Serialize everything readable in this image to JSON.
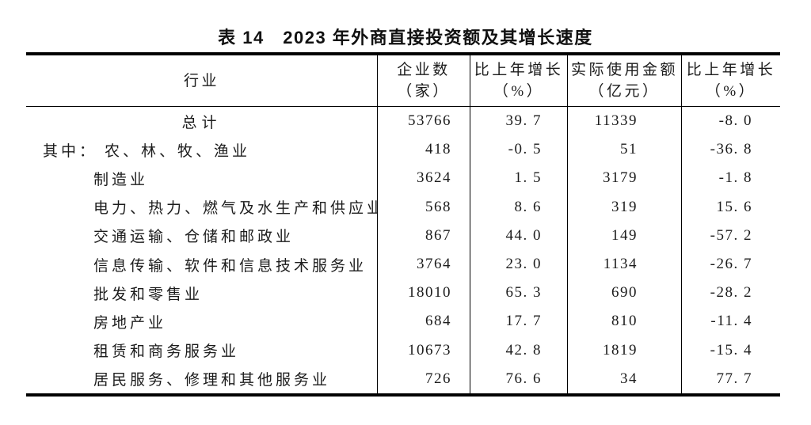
{
  "page": {
    "background": "#ffffff",
    "text_color": "#1c1c1c",
    "rule_color": "#000000"
  },
  "table": {
    "title": "表 14　2023 年外商直接投资额及其增长速度",
    "columns": [
      {
        "line1": "行业",
        "line2": ""
      },
      {
        "line1": "企业数",
        "line2": "（家）"
      },
      {
        "line1": "比上年增长",
        "line2": "（%）"
      },
      {
        "line1": "实际使用金额",
        "line2": "（亿元）"
      },
      {
        "line1": "比上年增长",
        "line2": "（%）"
      }
    ],
    "rows": [
      {
        "style": "total",
        "prefix": "",
        "industry": "总计",
        "enterprises": "53766",
        "enterprises_growth": "39. 7",
        "amount": "11339",
        "amount_growth": "-8. 0"
      },
      {
        "style": "group",
        "prefix": "其中：",
        "industry": "农、林、牧、渔业",
        "enterprises": "418",
        "enterprises_growth": "-0. 5",
        "amount": "51",
        "amount_growth": "-36. 8"
      },
      {
        "style": "item",
        "prefix": "",
        "industry": "制造业",
        "enterprises": "3624",
        "enterprises_growth": "1. 5",
        "amount": "3179",
        "amount_growth": "-1. 8"
      },
      {
        "style": "item",
        "prefix": "",
        "industry": "电力、热力、燃气及水生产和供应业",
        "enterprises": "568",
        "enterprises_growth": "8. 6",
        "amount": "319",
        "amount_growth": "15. 6"
      },
      {
        "style": "item",
        "prefix": "",
        "industry": "交通运输、仓储和邮政业",
        "enterprises": "867",
        "enterprises_growth": "44. 0",
        "amount": "149",
        "amount_growth": "-57. 2"
      },
      {
        "style": "item",
        "prefix": "",
        "industry": "信息传输、软件和信息技术服务业",
        "enterprises": "3764",
        "enterprises_growth": "23. 0",
        "amount": "1134",
        "amount_growth": "-26. 7"
      },
      {
        "style": "item",
        "prefix": "",
        "industry": "批发和零售业",
        "enterprises": "18010",
        "enterprises_growth": "65. 3",
        "amount": "690",
        "amount_growth": "-28. 2"
      },
      {
        "style": "item",
        "prefix": "",
        "industry": "房地产业",
        "enterprises": "684",
        "enterprises_growth": "17. 7",
        "amount": "810",
        "amount_growth": "-11. 4"
      },
      {
        "style": "item",
        "prefix": "",
        "industry": "租赁和商务服务业",
        "enterprises": "10673",
        "enterprises_growth": "42. 8",
        "amount": "1819",
        "amount_growth": "-15. 4"
      },
      {
        "style": "item",
        "prefix": "",
        "industry": "居民服务、修理和其他服务业",
        "enterprises": "726",
        "enterprises_growth": "76. 6",
        "amount": "34",
        "amount_growth": "77. 7"
      }
    ]
  }
}
